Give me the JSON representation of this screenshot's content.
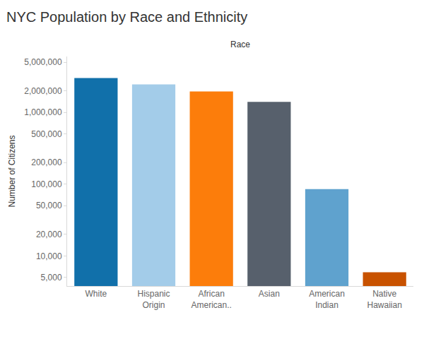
{
  "chart_data": {
    "type": "bar",
    "title": "NYC Population by Race and Ethnicity",
    "xlabel": "Race",
    "ylabel": "Number of Citizens",
    "categories": [
      "White",
      "Hispanic Origin",
      "African American..",
      "Asian",
      "American Indian",
      "Native Hawaiian"
    ],
    "values": [
      3000000,
      2450000,
      1950000,
      1400000,
      85000,
      5900
    ],
    "colors": [
      "#1170aa",
      "#a3cce9",
      "#fc7d0b",
      "#57606c",
      "#5fa2ce",
      "#c85200"
    ],
    "log": "y",
    "grid": false,
    "ylim": [
      3800,
      6000000
    ],
    "yticks": [
      {
        "value": 5000,
        "label": "5,000"
      },
      {
        "value": 10000,
        "label": "10,000"
      },
      {
        "value": 20000,
        "label": "20,000"
      },
      {
        "value": 50000,
        "label": "50,000"
      },
      {
        "value": 100000,
        "label": "100,000"
      },
      {
        "value": 200000,
        "label": "200,000"
      },
      {
        "value": 500000,
        "label": "500,000"
      },
      {
        "value": 1000000,
        "label": "1,000,000"
      },
      {
        "value": 2000000,
        "label": "2,000,000"
      },
      {
        "value": 5000000,
        "label": "5,000,000"
      }
    ]
  }
}
